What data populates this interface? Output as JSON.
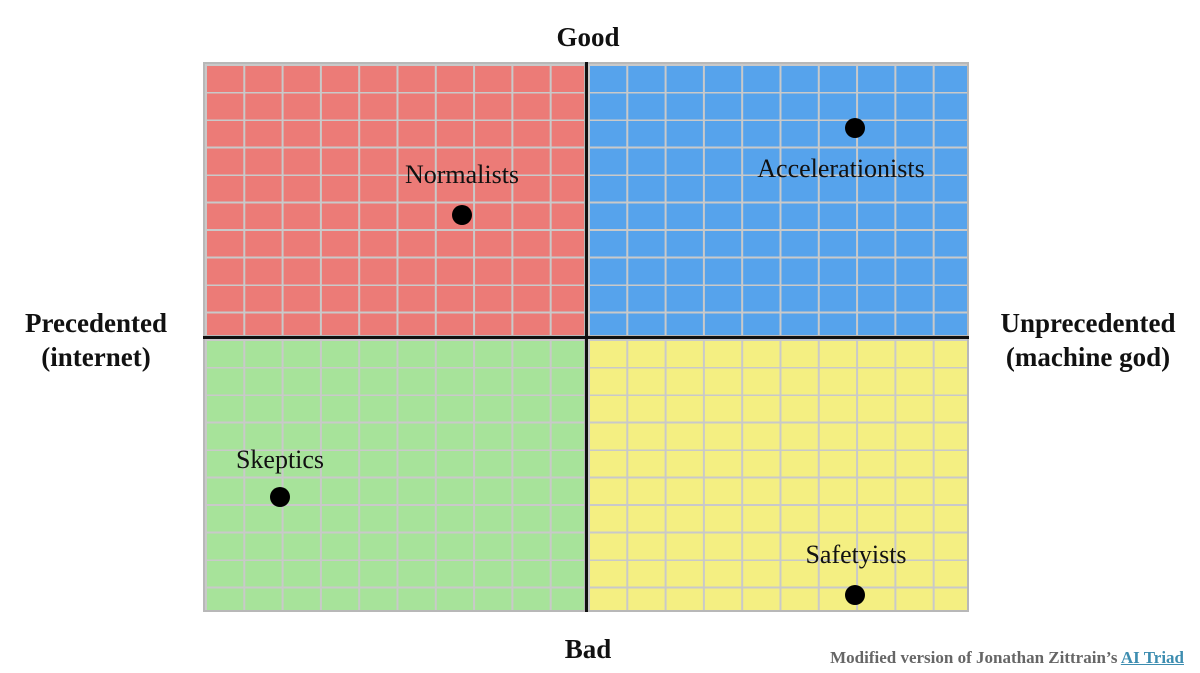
{
  "axes": {
    "top": "Good",
    "bottom": "Bad",
    "left": [
      "Precedented",
      "(internet)"
    ],
    "right": [
      "Unprecedented",
      "(machine god)"
    ]
  },
  "quadrant_colors": {
    "top_left": "#ec7b77",
    "top_right": "#56a3ec",
    "bottom_left": "#a7e39a",
    "bottom_right": "#f4ef82"
  },
  "groups": [
    {
      "name": "Normalists",
      "quadrant": "top_left"
    },
    {
      "name": "Accelerationists",
      "quadrant": "top_right"
    },
    {
      "name": "Skeptics",
      "quadrant": "bottom_left"
    },
    {
      "name": "Safetyists",
      "quadrant": "bottom_right"
    }
  ],
  "credit": {
    "text": "Modified version of Jonathan Zittrain’s ",
    "link_text": "AI Triad"
  }
}
